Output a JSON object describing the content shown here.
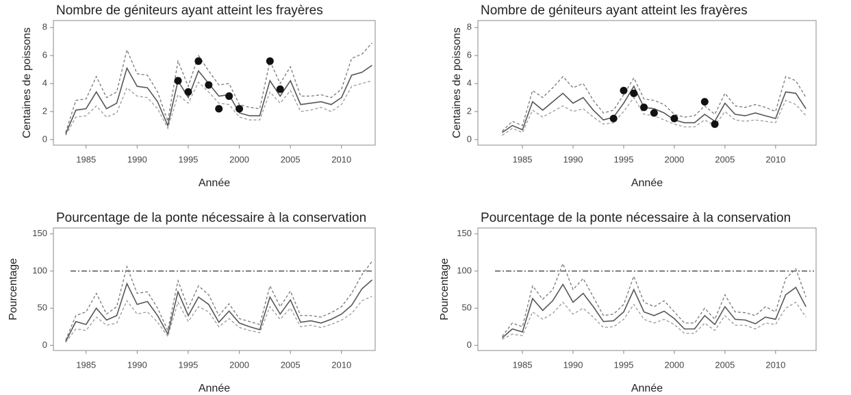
{
  "chart_data": [
    {
      "type": "line",
      "title": "Nombre de géniteurs ayant atteint les frayères",
      "xlabel": "Année",
      "ylabel": "Centaines de poissons",
      "x": [
        1983,
        1984,
        1985,
        1986,
        1987,
        1988,
        1989,
        1990,
        1991,
        1992,
        1993,
        1994,
        1995,
        1996,
        1997,
        1998,
        1999,
        2000,
        2001,
        2002,
        2003,
        2004,
        2005,
        2006,
        2007,
        2008,
        2009,
        2010,
        2011,
        2012,
        2013
      ],
      "xlim": [
        1981.8,
        2013.3
      ],
      "xticks": [
        1985,
        1990,
        1995,
        2000,
        2005,
        2010
      ],
      "ylim": [
        -0.4,
        8.5
      ],
      "yticks": [
        0,
        2,
        4,
        6,
        8
      ],
      "series": [
        {
          "style": "solid",
          "color": "#555555",
          "values": [
            0.4,
            2.1,
            2.2,
            3.4,
            2.2,
            2.6,
            5.1,
            3.8,
            3.7,
            2.7,
            1.0,
            4.2,
            3.0,
            4.9,
            4.0,
            3.1,
            3.2,
            1.9,
            1.7,
            1.7,
            4.2,
            3.1,
            4.2,
            2.5,
            2.6,
            2.7,
            2.5,
            3.0,
            4.6,
            4.8,
            5.3
          ]
        },
        {
          "style": "dashed",
          "color": "#777777",
          "values": [
            0.5,
            2.8,
            2.9,
            4.5,
            3.0,
            3.4,
            6.4,
            4.7,
            4.6,
            3.4,
            1.3,
            5.6,
            3.8,
            6.0,
            4.9,
            3.9,
            4.0,
            2.5,
            2.3,
            2.2,
            5.6,
            4.0,
            5.2,
            3.1,
            3.1,
            3.2,
            3.0,
            3.6,
            5.8,
            6.1,
            6.9
          ]
        },
        {
          "style": "dashed",
          "color": "#999999",
          "values": [
            0.3,
            1.6,
            1.7,
            2.4,
            1.6,
            1.9,
            3.7,
            3.1,
            3.0,
            2.2,
            0.8,
            3.2,
            2.6,
            4.1,
            3.4,
            2.6,
            2.5,
            1.6,
            1.4,
            1.4,
            3.4,
            2.6,
            3.5,
            2.0,
            2.1,
            2.3,
            2.0,
            2.5,
            3.8,
            4.0,
            4.2
          ]
        },
        {
          "style": "points",
          "color": "#111111",
          "x": [
            1994,
            1995,
            1996,
            1997,
            1998,
            1999,
            2000,
            2003,
            2004
          ],
          "values": [
            4.2,
            3.4,
            5.6,
            3.9,
            2.2,
            3.1,
            2.2,
            5.6,
            3.6
          ]
        }
      ]
    },
    {
      "type": "line",
      "title": "Nombre de géniteurs ayant atteint les frayères",
      "xlabel": "Année",
      "ylabel": "Centaines de poissons",
      "x": [
        1983,
        1984,
        1985,
        1986,
        1987,
        1988,
        1989,
        1990,
        1991,
        1992,
        1993,
        1994,
        1995,
        1996,
        1997,
        1998,
        1999,
        2000,
        2001,
        2002,
        2003,
        2004,
        2005,
        2006,
        2007,
        2008,
        2009,
        2010,
        2011,
        2012,
        2013
      ],
      "xlim": [
        1980.6,
        2014.0
      ],
      "xticks": [
        1985,
        1990,
        1995,
        2000,
        2005,
        2010
      ],
      "ylim": [
        -0.4,
        8.5
      ],
      "yticks": [
        0,
        2,
        4,
        6,
        8
      ],
      "series": [
        {
          "style": "solid",
          "color": "#555555",
          "values": [
            0.5,
            1.0,
            0.7,
            2.7,
            2.1,
            2.7,
            3.3,
            2.6,
            3.0,
            2.1,
            1.4,
            1.6,
            2.6,
            3.8,
            2.3,
            2.2,
            1.9,
            1.4,
            1.2,
            1.2,
            1.8,
            1.3,
            2.6,
            1.8,
            1.7,
            1.9,
            1.7,
            1.5,
            3.4,
            3.3,
            2.2
          ]
        },
        {
          "style": "dashed",
          "color": "#777777",
          "values": [
            0.6,
            1.3,
            1.0,
            3.5,
            3.0,
            3.7,
            4.5,
            3.7,
            4.0,
            2.8,
            1.9,
            2.1,
            3.2,
            4.4,
            2.9,
            2.8,
            2.5,
            1.8,
            1.6,
            1.7,
            2.4,
            1.8,
            3.3,
            2.4,
            2.3,
            2.5,
            2.3,
            2.0,
            4.5,
            4.2,
            3.0
          ]
        },
        {
          "style": "dashed",
          "color": "#999999",
          "values": [
            0.3,
            0.8,
            0.5,
            2.1,
            1.6,
            2.0,
            2.4,
            2.0,
            2.2,
            1.6,
            1.1,
            1.2,
            2.0,
            3.0,
            1.8,
            1.7,
            1.4,
            1.1,
            0.9,
            0.9,
            1.4,
            1.0,
            2.0,
            1.4,
            1.3,
            1.4,
            1.3,
            1.2,
            2.8,
            2.5,
            1.7
          ]
        },
        {
          "style": "points",
          "color": "#111111",
          "x": [
            1994,
            1995,
            1996,
            1997,
            1998,
            2000,
            2003,
            2004
          ],
          "values": [
            1.5,
            3.5,
            3.3,
            2.3,
            1.9,
            1.5,
            2.7,
            1.1
          ]
        }
      ]
    },
    {
      "type": "line",
      "title": "Pourcentage de la ponte nécessaire à la conservation",
      "xlabel": "Année",
      "ylabel": "Pourcentage",
      "x": [
        1983,
        1984,
        1985,
        1986,
        1987,
        1988,
        1989,
        1990,
        1991,
        1992,
        1993,
        1994,
        1995,
        1996,
        1997,
        1998,
        1999,
        2000,
        2001,
        2002,
        2003,
        2004,
        2005,
        2006,
        2007,
        2008,
        2009,
        2010,
        2011,
        2012,
        2013
      ],
      "xlim": [
        1981.8,
        2013.3
      ],
      "xticks": [
        1985,
        1990,
        1995,
        2000,
        2005,
        2010
      ],
      "ylim": [
        -7,
        158
      ],
      "yticks": [
        0,
        50,
        100,
        150
      ],
      "reference_line": 100,
      "series": [
        {
          "style": "solid",
          "color": "#555555",
          "values": [
            5,
            32,
            28,
            50,
            34,
            40,
            83,
            55,
            59,
            40,
            15,
            72,
            40,
            65,
            55,
            31,
            46,
            30,
            25,
            21,
            65,
            42,
            61,
            31,
            33,
            30,
            35,
            42,
            54,
            76,
            88
          ]
        },
        {
          "style": "dashed",
          "color": "#777777",
          "values": [
            7,
            40,
            45,
            70,
            42,
            52,
            106,
            70,
            72,
            50,
            20,
            87,
            50,
            80,
            68,
            40,
            56,
            36,
            32,
            28,
            80,
            52,
            73,
            40,
            40,
            38,
            44,
            52,
            70,
            95,
            113
          ]
        },
        {
          "style": "dashed",
          "color": "#999999",
          "values": [
            4,
            22,
            20,
            38,
            27,
            30,
            60,
            42,
            45,
            31,
            12,
            58,
            32,
            52,
            45,
            25,
            36,
            24,
            20,
            17,
            52,
            35,
            50,
            25,
            27,
            24,
            28,
            34,
            43,
            60,
            66
          ]
        }
      ]
    },
    {
      "type": "line",
      "title": "Pourcentage de la ponte nécessaire à la conservation",
      "xlabel": "Année",
      "ylabel": "Pourcentage",
      "x": [
        1983,
        1984,
        1985,
        1986,
        1987,
        1988,
        1989,
        1990,
        1991,
        1992,
        1993,
        1994,
        1995,
        1996,
        1997,
        1998,
        1999,
        2000,
        2001,
        2002,
        2003,
        2004,
        2005,
        2006,
        2007,
        2008,
        2009,
        2010,
        2011,
        2012,
        2013
      ],
      "xlim": [
        1980.6,
        2014.0
      ],
      "xticks": [
        1985,
        1990,
        1995,
        2000,
        2005,
        2010
      ],
      "ylim": [
        -7,
        158
      ],
      "yticks": [
        0,
        50,
        100,
        150
      ],
      "reference_line": 100,
      "series": [
        {
          "style": "solid",
          "color": "#555555",
          "values": [
            10,
            22,
            18,
            63,
            47,
            60,
            82,
            58,
            70,
            52,
            32,
            33,
            45,
            75,
            45,
            40,
            46,
            36,
            22,
            22,
            40,
            28,
            52,
            35,
            34,
            29,
            38,
            35,
            68,
            78,
            52
          ]
        },
        {
          "style": "dashed",
          "color": "#777777",
          "values": [
            12,
            30,
            25,
            80,
            62,
            75,
            110,
            75,
            90,
            65,
            40,
            42,
            55,
            93,
            58,
            52,
            60,
            45,
            30,
            30,
            50,
            35,
            68,
            45,
            44,
            40,
            52,
            45,
            90,
            103,
            65
          ]
        },
        {
          "style": "dashed",
          "color": "#999999",
          "values": [
            8,
            15,
            13,
            45,
            35,
            43,
            58,
            42,
            50,
            38,
            24,
            25,
            35,
            55,
            35,
            30,
            35,
            28,
            16,
            16,
            30,
            20,
            40,
            27,
            27,
            22,
            30,
            28,
            50,
            58,
            38
          ]
        }
      ]
    }
  ]
}
